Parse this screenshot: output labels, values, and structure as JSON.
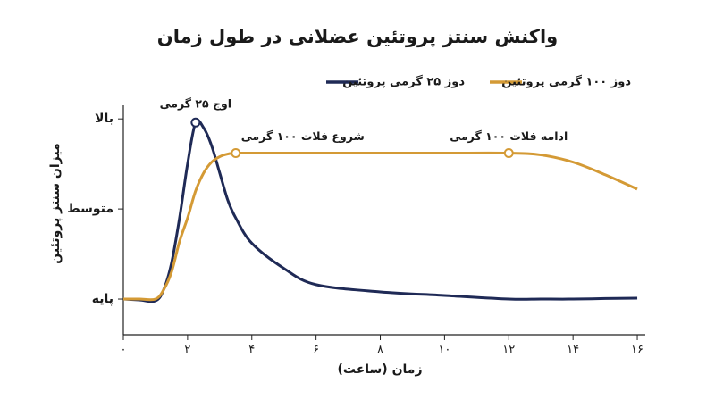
{
  "chart_data": {
    "type": "line",
    "title": "واکنش سنتز پروتئین عضلانی در طول زمان",
    "x_label": "زمان (ساعت)",
    "y_label": "میزان سنتز پروتئین",
    "x": [
      0,
      0.5,
      1,
      1.25,
      1.5,
      1.75,
      2,
      2.25,
      2.5,
      2.75,
      3,
      3.25,
      3.5,
      4,
      5,
      6,
      8,
      10,
      12,
      13,
      14,
      15,
      16
    ],
    "series": [
      {
        "name": "دوز ۲۵ گرمی پروتئین",
        "color": "#1f2a56",
        "values": [
          0,
          -0.5,
          -1,
          5,
          20,
          45,
          75,
          98,
          95,
          85,
          70,
          55,
          45,
          31,
          17,
          8,
          4,
          2,
          0,
          0,
          0,
          0.3,
          0.5
        ]
      },
      {
        "name": "دوز ۱۰۰ گرمی پروتئین",
        "color": "#d49a35",
        "values": [
          0,
          0,
          0,
          5,
          15,
          32,
          45,
          60,
          70,
          76,
          79,
          80.5,
          81,
          81,
          81,
          81,
          81,
          81,
          81,
          80,
          76,
          69,
          61
        ]
      }
    ],
    "xlim": [
      0,
      16.3
    ],
    "ylim": [
      -20,
      110
    ],
    "xticks": [
      {
        "value": 0,
        "label": "۰"
      },
      {
        "value": 2,
        "label": "۲"
      },
      {
        "value": 4,
        "label": "۴"
      },
      {
        "value": 6,
        "label": "۶"
      },
      {
        "value": 8,
        "label": "۸"
      },
      {
        "value": 10,
        "label": "۱۰"
      },
      {
        "value": 12,
        "label": "۱۲"
      },
      {
        "value": 14,
        "label": "۱۴"
      },
      {
        "value": 16,
        "label": "۱۶"
      }
    ],
    "yticks": [
      {
        "value": 0,
        "label": "پایه"
      },
      {
        "value": 50,
        "label": "متوسط"
      },
      {
        "value": 100,
        "label": "بالا"
      }
    ],
    "annotations": [
      {
        "text": "اوج ۲۵ گرمی",
        "x": 2.25,
        "y": 98,
        "color": "#1f2a56"
      },
      {
        "text": "شروع فلات ۱۰۰ گرمی",
        "x": 3.5,
        "y": 81,
        "color": "#d49a35"
      },
      {
        "text": "ادامه فلات ۱۰۰ گرمی",
        "x": 12,
        "y": 81,
        "color": "#d49a35"
      }
    ]
  }
}
